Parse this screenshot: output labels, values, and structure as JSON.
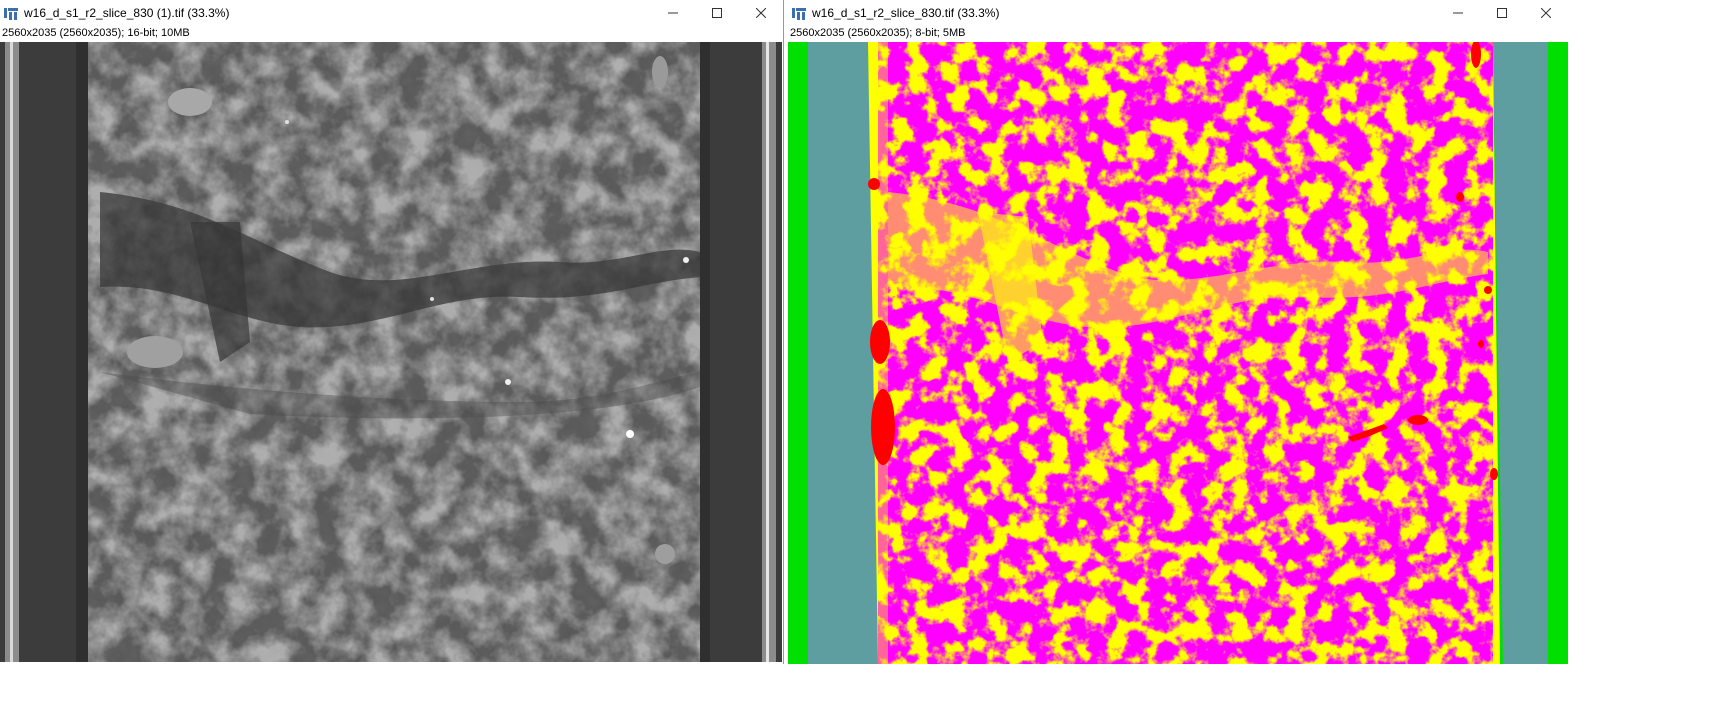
{
  "windows": [
    {
      "title": "w16_d_s1_r2_slice_830 (1).tif (33.3%)",
      "info": "2560x2035   (2560x2035); 16-bit; 10MB",
      "buttons": {
        "minimize": "minimize-icon",
        "maximize": "maximize-icon",
        "close": "close-icon"
      }
    },
    {
      "title": "w16_d_s1_r2_slice_830.tif (33.3%)",
      "info": "2560x2035   (2560x2035); 8-bit; 5MB",
      "buttons": {
        "minimize": "minimize-icon",
        "maximize": "maximize-icon",
        "close": "close-icon"
      }
    }
  ],
  "colors": {
    "grayscale_background": "#5a5a5a",
    "label_green": "#00e000",
    "label_teal": "#5f9ea0",
    "label_yellow": "#ffff00",
    "label_magenta": "#ff00ff",
    "label_red": "#ff0000"
  }
}
